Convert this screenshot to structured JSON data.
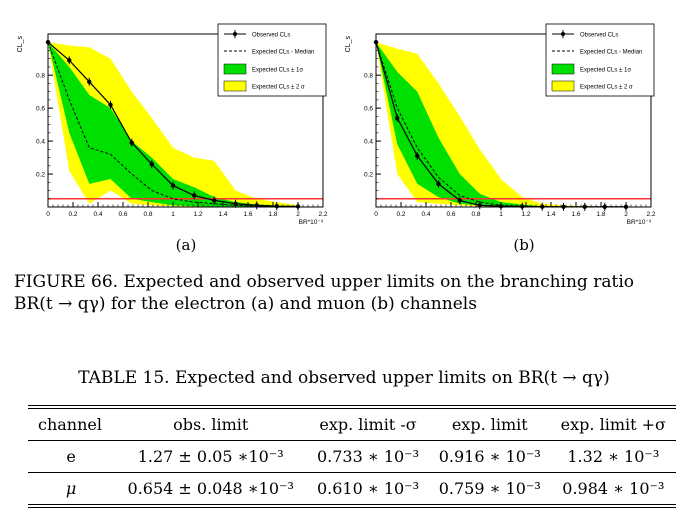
{
  "figure": {
    "panels": [
      {
        "label": "(a)"
      },
      {
        "label": "(b)"
      }
    ],
    "caption": "FIGURE 66. Expected and observed upper limits on the branching ratio BR(t → qγ) for the electron (a) and muon (b) channels"
  },
  "chart_data": [
    {
      "type": "line",
      "ylabel": "CL_s",
      "xlabel": "BR*10⁻³",
      "xlim": [
        0,
        2.2
      ],
      "ylim": [
        0,
        1.05
      ],
      "xticks": [
        "0",
        "0.2",
        "0.4",
        "0.6",
        "0.8",
        "1",
        "1.2",
        "1.4",
        "1.6",
        "1.8",
        "2",
        "2.2"
      ],
      "yticks": [
        "0.2",
        "0.4",
        "0.6",
        "0.8"
      ],
      "threshold": 0.05,
      "legend": [
        "Observed CLs",
        "Expected CLs - Median",
        "Expected CLs ± 1σ",
        "Expected CLs ± 2 σ"
      ],
      "legend_position": "top-right",
      "colors": {
        "band1": "#00e000",
        "band2": "#ffff00",
        "threshold": "#ff3333"
      },
      "observed": {
        "x": [
          0,
          0.17,
          0.33,
          0.5,
          0.67,
          0.83,
          1.0,
          1.17,
          1.33,
          1.5,
          1.67,
          1.83,
          2.0
        ],
        "y": [
          1.0,
          0.89,
          0.76,
          0.62,
          0.39,
          0.26,
          0.13,
          0.07,
          0.04,
          0.02,
          0.01,
          0.005,
          0.003
        ]
      },
      "median": {
        "x": [
          0,
          0.17,
          0.33,
          0.5,
          0.67,
          0.83,
          1.0,
          1.17,
          1.33,
          1.5,
          1.67,
          1.83,
          2.0
        ],
        "y": [
          1.0,
          0.65,
          0.36,
          0.32,
          0.2,
          0.1,
          0.05,
          0.03,
          0.02,
          0.01,
          0.005,
          0.003,
          0.002
        ]
      },
      "band1": {
        "x": [
          0,
          0.17,
          0.33,
          0.5,
          0.67,
          0.83,
          1.0,
          1.17,
          1.33,
          1.5,
          1.67,
          1.83,
          2.0
        ],
        "lo": [
          1.0,
          0.45,
          0.14,
          0.17,
          0.05,
          0.03,
          0.01,
          0.005,
          0.003,
          0.002,
          0.001,
          0.001,
          0.001
        ],
        "hi": [
          1.0,
          0.85,
          0.68,
          0.6,
          0.4,
          0.3,
          0.17,
          0.12,
          0.06,
          0.03,
          0.015,
          0.01,
          0.005
        ]
      },
      "band2": {
        "x": [
          0,
          0.17,
          0.33,
          0.5,
          0.67,
          0.83,
          1.0,
          1.17,
          1.33,
          1.5,
          1.67,
          1.83,
          2.0
        ],
        "lo": [
          1.0,
          0.22,
          0.02,
          0.1,
          0.02,
          0.01,
          0.005,
          0.003,
          0.002,
          0.001,
          0.001,
          0.001,
          0.001
        ],
        "hi": [
          1.0,
          0.98,
          0.97,
          0.9,
          0.7,
          0.54,
          0.36,
          0.3,
          0.28,
          0.1,
          0.05,
          0.03,
          0.01
        ]
      }
    },
    {
      "type": "line",
      "ylabel": "CL_s",
      "xlabel": "BR*10⁻³",
      "xlim": [
        0,
        2.2
      ],
      "ylim": [
        0,
        1.05
      ],
      "xticks": [
        "0",
        "0.2",
        "0.4",
        "0.6",
        "0.8",
        "1",
        "1.2",
        "1.4",
        "1.6",
        "1.8",
        "2",
        "2.2"
      ],
      "yticks": [
        "0.2",
        "0.4",
        "0.6",
        "0.8"
      ],
      "threshold": 0.05,
      "legend": [
        "Observed CLs",
        "Expected CLs - Median",
        "Expected CLs ± 1σ",
        "Expected CLs ± 2 σ"
      ],
      "legend_position": "top-right",
      "colors": {
        "band1": "#00e000",
        "band2": "#ffff00",
        "threshold": "#ff3333"
      },
      "observed": {
        "x": [
          0,
          0.17,
          0.33,
          0.5,
          0.67,
          0.83,
          1.0,
          1.17,
          1.33,
          1.5,
          1.67,
          1.83,
          2.0
        ],
        "y": [
          1.0,
          0.54,
          0.31,
          0.14,
          0.04,
          0.01,
          0.005,
          0.003,
          0.002,
          0.001,
          0.001,
          0.001,
          0.001
        ]
      },
      "median": {
        "x": [
          0,
          0.17,
          0.33,
          0.5,
          0.67,
          0.83,
          1.0,
          1.17,
          1.33,
          1.5,
          1.67,
          1.83,
          2.0
        ],
        "y": [
          1.0,
          0.6,
          0.36,
          0.18,
          0.07,
          0.03,
          0.01,
          0.005,
          0.003,
          0.002,
          0.001,
          0.001,
          0.001
        ]
      },
      "band1": {
        "x": [
          0,
          0.17,
          0.33,
          0.5,
          0.67,
          0.83,
          1.0,
          1.17,
          1.33,
          1.5,
          1.67,
          1.83,
          2.0
        ],
        "lo": [
          1.0,
          0.38,
          0.14,
          0.06,
          0.02,
          0.01,
          0.003,
          0.002,
          0.001,
          0.001,
          0.001,
          0.001,
          0.001
        ],
        "hi": [
          1.0,
          0.82,
          0.7,
          0.42,
          0.2,
          0.08,
          0.03,
          0.015,
          0.005,
          0.003,
          0.002,
          0.001,
          0.001
        ]
      },
      "band2": {
        "x": [
          0,
          0.17,
          0.33,
          0.5,
          0.67,
          0.83,
          1.0,
          1.17,
          1.33,
          1.5,
          1.67,
          1.83,
          2.0
        ],
        "lo": [
          1.0,
          0.2,
          0.03,
          0.02,
          0.01,
          0.005,
          0.002,
          0.001,
          0.001,
          0.001,
          0.001,
          0.001,
          0.001
        ],
        "hi": [
          1.0,
          0.96,
          0.93,
          0.75,
          0.55,
          0.35,
          0.17,
          0.06,
          0.02,
          0.01,
          0.005,
          0.003,
          0.002
        ]
      }
    }
  ],
  "table": {
    "caption": "TABLE 15. Expected and observed upper limits on BR(t → qγ)",
    "headers": [
      "channel",
      "obs. limit",
      "exp. limit -σ",
      "exp. limit",
      "exp. limit +σ"
    ],
    "rows": [
      [
        "e",
        "1.27 ± 0.05 ∗10⁻³",
        "0.733 ∗ 10⁻³",
        "0.916 ∗ 10⁻³",
        "1.32 ∗ 10⁻³"
      ],
      [
        "μ",
        "0.654 ± 0.048 ∗10⁻³",
        "0.610 ∗ 10⁻³",
        "0.759 ∗ 10⁻³",
        "0.984 ∗ 10⁻³"
      ]
    ]
  }
}
